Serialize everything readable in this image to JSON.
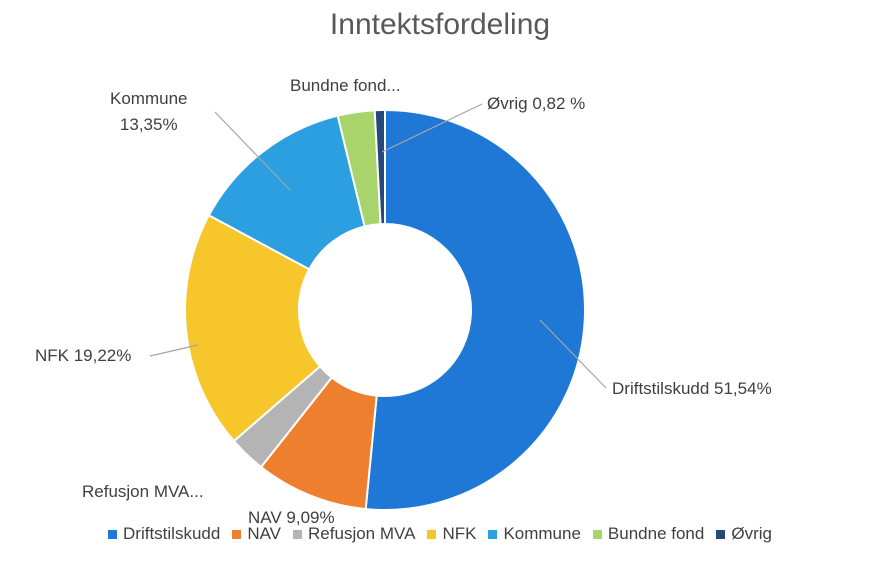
{
  "chart_data": {
    "type": "donut",
    "title": "Inntektsfordeling",
    "categories": [
      "Driftstilskudd",
      "NAV",
      "Refusjon MVA",
      "NFK",
      "Kommune",
      "Bundne fond",
      "Øvrig"
    ],
    "values": [
      51.54,
      9.09,
      3.0,
      19.22,
      13.35,
      2.98,
      0.82
    ],
    "value_labels": [
      "Driftstilskudd 51,54%",
      "NAV 9,09%",
      "Refusjon MVA...",
      "NFK 19,22%",
      "Kommune\n13,35%",
      "Bundne fond...",
      "Øvrig 0,82 %"
    ],
    "colors": [
      "#1f77d6",
      "#ee7f2e",
      "#b4b4b4",
      "#f6c62a",
      "#2b9fe0",
      "#a8d46b",
      "#25497a"
    ],
    "legend": "bottom"
  }
}
